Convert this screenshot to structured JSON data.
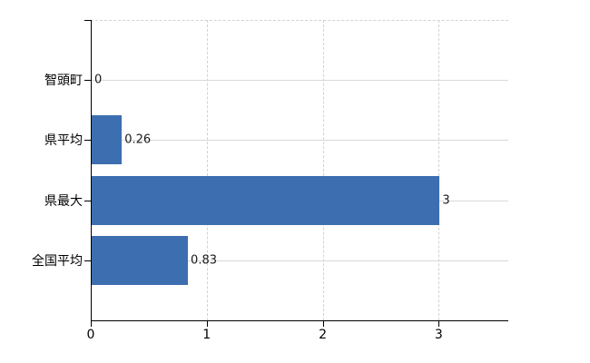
{
  "page": {
    "background": "#ffffff"
  },
  "chart_data": {
    "type": "bar",
    "orientation": "horizontal",
    "title": "",
    "categories": [
      "智頭町",
      "県平均",
      "県最大",
      "全国平均"
    ],
    "values": [
      0,
      0.26,
      3,
      0.83
    ],
    "value_labels": [
      "0",
      "0.26",
      "3",
      "0.83"
    ],
    "x_axis": {
      "min": 0,
      "max": 3.6,
      "ticks": [
        0,
        1,
        2,
        3
      ],
      "tick_labels": [
        "0",
        "1",
        "2",
        "3"
      ]
    },
    "grid": {
      "vertical_dashed": true,
      "horizontal_solid": true,
      "top_border_dashed": true
    },
    "legend": "none",
    "colors": {
      "bar": "#3d6eb0",
      "axis": "#000000",
      "gridline_solid": "#d9d9d9",
      "gridline_dashed": "#d2d2d2",
      "text": "#1a1a1a",
      "background": "#ffffff"
    }
  }
}
